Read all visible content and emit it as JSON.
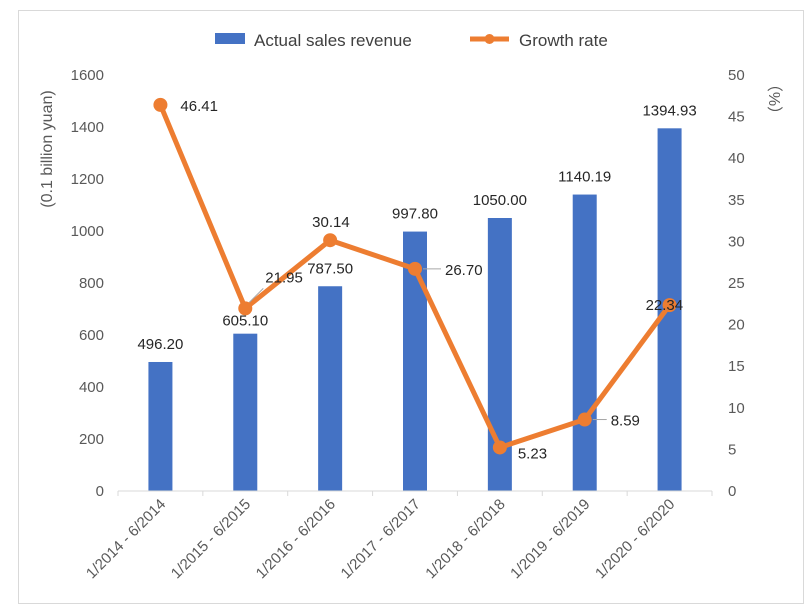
{
  "chart_data": {
    "type": "bar",
    "categories": [
      "1/2014 - 6/2014",
      "1/2015 - 6/2015",
      "1/2016 - 6/2016",
      "1/2017 - 6/2017",
      "1/2018 - 6/2018",
      "1/2019 - 6/2019",
      "1/2020 - 6/2020"
    ],
    "series": [
      {
        "name": "Actual sales revenue",
        "type": "bar",
        "axis": "left",
        "color": "#4472c4",
        "values": [
          496.2,
          605.1,
          787.5,
          997.8,
          1050.0,
          1140.19,
          1394.93
        ],
        "labels": [
          "496.20",
          "605.10",
          "787.50",
          "997.80",
          "1050.00",
          "1140.19",
          "1394.93"
        ]
      },
      {
        "name": "Growth rate",
        "type": "line",
        "axis": "right",
        "color": "#ed7d31",
        "values": [
          46.41,
          21.95,
          30.14,
          26.7,
          5.23,
          8.59,
          22.34
        ],
        "labels": [
          "46.41",
          "21.95",
          "30.14",
          "26.70",
          "5.23",
          "8.59",
          "22.34"
        ]
      }
    ],
    "ylabel": "(0.1 billion  yuan)",
    "y2label": "（%）",
    "ylim": [
      0,
      1600
    ],
    "y2lim": [
      0,
      50
    ],
    "yticks": [
      "0",
      "200",
      "400",
      "600",
      "800",
      "1000",
      "1200",
      "1400",
      "1600"
    ],
    "y2ticks": [
      "0",
      "5",
      "10",
      "15",
      "20",
      "25",
      "30",
      "35",
      "40",
      "45",
      "50"
    ],
    "grid": false,
    "legend": "top-center"
  }
}
